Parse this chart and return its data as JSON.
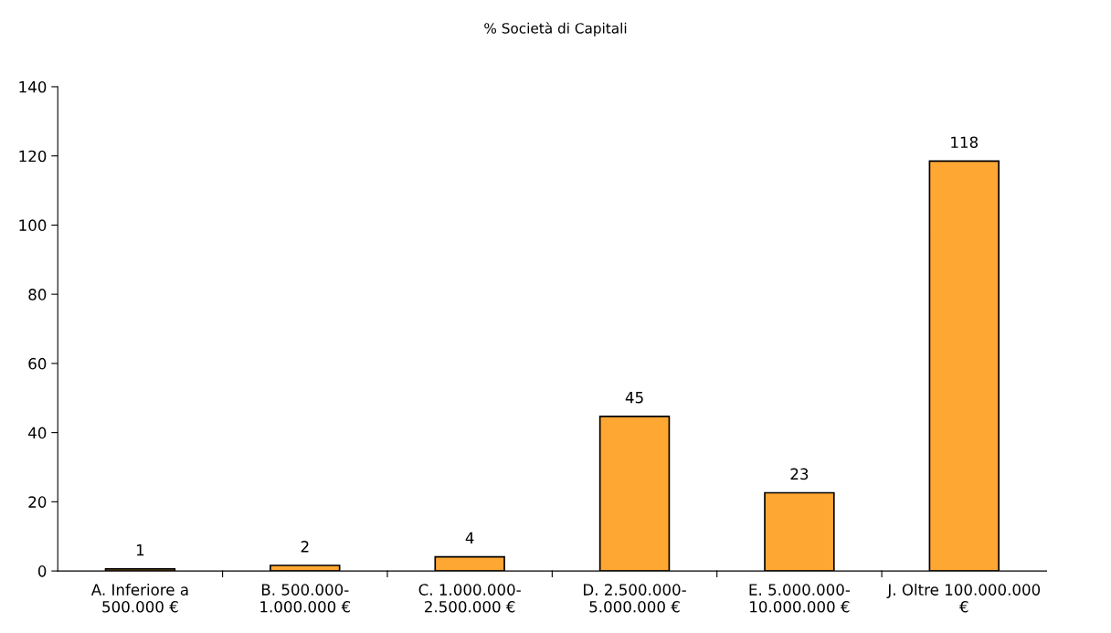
{
  "chart_data": {
    "type": "bar",
    "title": "% Società di Capitali",
    "categories": [
      "A. Inferiore a\n500.000 €",
      "B. 500.000-\n1.000.000 €",
      "C. 1.000.000-\n2.500.000 €",
      "D. 2.500.000-\n5.000.000 €",
      "E. 5.000.000-\n10.000.000 €",
      "J. Oltre 100.000.000\n€"
    ],
    "values": [
      0.6,
      1.6,
      4.1,
      44.7,
      22.6,
      118.5
    ],
    "value_labels": [
      "1",
      "2",
      "4",
      "45",
      "23",
      "118"
    ],
    "color": "#ffa733",
    "ylim": [
      0,
      140
    ],
    "yticks": [
      0,
      20,
      40,
      60,
      80,
      100,
      120,
      140
    ],
    "grid": false,
    "legend": false
  }
}
